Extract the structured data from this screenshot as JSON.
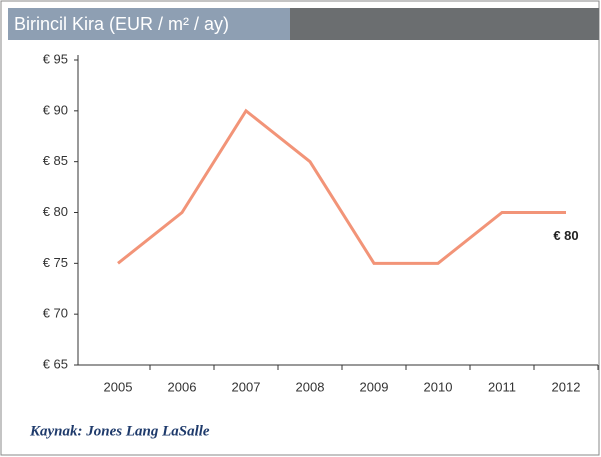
{
  "chart_data": {
    "type": "line",
    "title": "Birincil Kira (EUR / m² / ay)",
    "categories": [
      "2005",
      "2006",
      "2007",
      "2008",
      "2009",
      "2010",
      "2011",
      "2012"
    ],
    "values": [
      75,
      80,
      90,
      85,
      75,
      75,
      80,
      80
    ],
    "color": "#f29478",
    "ylim": [
      65,
      95
    ],
    "yticks": [
      {
        "value": 65,
        "label": "€ 65"
      },
      {
        "value": 70,
        "label": "€ 70"
      },
      {
        "value": 75,
        "label": "€ 75"
      },
      {
        "value": 80,
        "label": "€ 80"
      },
      {
        "value": 85,
        "label": "€ 85"
      },
      {
        "value": 90,
        "label": "€ 90"
      },
      {
        "value": 95,
        "label": "€ 95"
      }
    ],
    "annotation": "€ 80",
    "source": "Kaynak: Jones Lang LaSalle"
  }
}
